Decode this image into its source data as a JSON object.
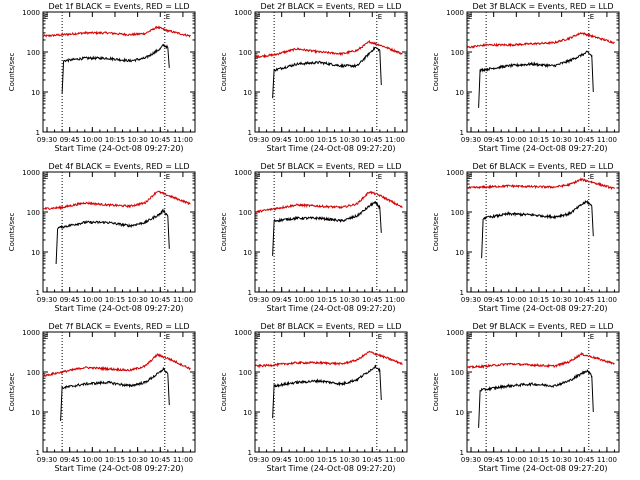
{
  "colors": {
    "events": "#000000",
    "lld": "#d40000",
    "axis": "#000000",
    "background": "#ffffff"
  },
  "shared": {
    "xlabel": "Start Time (24-Oct-08 09:27:20)",
    "ylabel": "Counts/sec",
    "x_ticks": [
      "09:30",
      "09:45",
      "10:00",
      "10:15",
      "10:30",
      "10:45",
      "11:00"
    ],
    "x_range": [
      "09:27:20",
      "11:08:00"
    ],
    "y_ticks": [
      "1",
      "10",
      "100",
      "1000"
    ],
    "y_range": [
      1,
      1000
    ],
    "y_scale": "log",
    "marker_label": "E",
    "dotted_lines_at": [
      "09:40",
      "10:48"
    ]
  },
  "chart_data": [
    {
      "type": "line",
      "title": "Det 1f BLACK = Events, RED = LLD",
      "series": [
        {
          "color": "red",
          "x": [
            "09:27:20",
            "09:40",
            "09:55",
            "10:10",
            "10:25",
            "10:35",
            "10:43",
            "10:50",
            "11:05"
          ],
          "values": [
            250,
            270,
            300,
            300,
            270,
            290,
            420,
            340,
            250
          ]
        },
        {
          "color": "black",
          "x": [
            "09:40",
            "09:41",
            "09:55",
            "10:10",
            "10:25",
            "10:35",
            "10:45",
            "10:47",
            "10:50",
            "10:51"
          ],
          "values": [
            9,
            60,
            70,
            70,
            60,
            70,
            120,
            150,
            130,
            40
          ]
        }
      ]
    },
    {
      "type": "line",
      "title": "Det 2f BLACK = Events, RED = LLD",
      "series": [
        {
          "color": "red",
          "x": [
            "09:27:20",
            "09:40",
            "09:55",
            "10:10",
            "10:25",
            "10:35",
            "10:43",
            "10:50",
            "11:05"
          ],
          "values": [
            75,
            85,
            120,
            100,
            90,
            110,
            180,
            150,
            90
          ]
        },
        {
          "color": "black",
          "x": [
            "09:39",
            "09:40",
            "09:55",
            "10:10",
            "10:25",
            "10:35",
            "10:45",
            "10:47",
            "10:50",
            "10:51"
          ],
          "values": [
            7,
            35,
            50,
            55,
            45,
            45,
            110,
            130,
            110,
            15
          ]
        }
      ]
    },
    {
      "type": "line",
      "title": "Det 3f BLACK = Events, RED = LLD",
      "series": [
        {
          "color": "red",
          "x": [
            "09:27:20",
            "09:40",
            "09:55",
            "10:10",
            "10:25",
            "10:35",
            "10:43",
            "10:50",
            "11:05"
          ],
          "values": [
            130,
            150,
            150,
            160,
            170,
            220,
            300,
            250,
            170
          ]
        },
        {
          "color": "black",
          "x": [
            "09:35",
            "09:36",
            "09:55",
            "10:10",
            "10:25",
            "10:35",
            "10:45",
            "10:47",
            "10:50",
            "10:51"
          ],
          "values": [
            4,
            35,
            45,
            50,
            45,
            60,
            90,
            100,
            80,
            10
          ]
        }
      ]
    },
    {
      "type": "line",
      "title": "Det 4f BLACK = Events, RED = LLD",
      "series": [
        {
          "color": "red",
          "x": [
            "09:27:20",
            "09:40",
            "09:55",
            "10:10",
            "10:25",
            "10:35",
            "10:43",
            "10:50",
            "11:05"
          ],
          "values": [
            120,
            130,
            170,
            150,
            140,
            170,
            330,
            260,
            160
          ]
        },
        {
          "color": "black",
          "x": [
            "09:36",
            "09:37",
            "09:55",
            "10:10",
            "10:25",
            "10:35",
            "10:45",
            "10:47",
            "10:50",
            "10:51"
          ],
          "values": [
            5,
            40,
            55,
            55,
            45,
            55,
            90,
            110,
            80,
            12
          ]
        }
      ]
    },
    {
      "type": "line",
      "title": "Det 5f BLACK = Events, RED = LLD",
      "series": [
        {
          "color": "red",
          "x": [
            "09:27:20",
            "09:40",
            "09:55",
            "10:10",
            "10:25",
            "10:35",
            "10:43",
            "10:50",
            "11:05"
          ],
          "values": [
            100,
            120,
            150,
            140,
            130,
            160,
            320,
            260,
            130
          ]
        },
        {
          "color": "black",
          "x": [
            "09:39",
            "09:40",
            "09:55",
            "10:10",
            "10:25",
            "10:35",
            "10:45",
            "10:47",
            "10:50",
            "10:51"
          ],
          "values": [
            8,
            60,
            70,
            70,
            60,
            80,
            160,
            170,
            130,
            30
          ]
        }
      ]
    },
    {
      "type": "line",
      "title": "Det 6f BLACK = Events, RED = LLD",
      "series": [
        {
          "color": "red",
          "x": [
            "09:27:20",
            "09:40",
            "09:55",
            "10:10",
            "10:25",
            "10:35",
            "10:43",
            "10:50",
            "11:05"
          ],
          "values": [
            400,
            420,
            450,
            430,
            420,
            480,
            650,
            560,
            380
          ]
        },
        {
          "color": "black",
          "x": [
            "09:37",
            "09:38",
            "09:55",
            "10:10",
            "10:25",
            "10:35",
            "10:45",
            "10:47",
            "10:50",
            "10:51"
          ],
          "values": [
            7,
            70,
            90,
            85,
            75,
            90,
            170,
            180,
            140,
            25
          ]
        }
      ]
    },
    {
      "type": "line",
      "title": "Det 7f BLACK = Events, RED = LLD",
      "series": [
        {
          "color": "red",
          "x": [
            "09:27:20",
            "09:40",
            "09:55",
            "10:10",
            "10:25",
            "10:35",
            "10:43",
            "10:50",
            "11:05"
          ],
          "values": [
            80,
            100,
            130,
            120,
            110,
            140,
            270,
            220,
            120
          ]
        },
        {
          "color": "black",
          "x": [
            "09:39",
            "09:40",
            "09:55",
            "10:10",
            "10:25",
            "10:35",
            "10:45",
            "10:47",
            "10:50",
            "10:51"
          ],
          "values": [
            6,
            40,
            50,
            55,
            45,
            55,
            100,
            120,
            90,
            15
          ]
        }
      ]
    },
    {
      "type": "line",
      "title": "Det 8f BLACK = Events, RED = LLD",
      "series": [
        {
          "color": "red",
          "x": [
            "09:27:20",
            "09:40",
            "09:55",
            "10:10",
            "10:25",
            "10:35",
            "10:43",
            "10:50",
            "11:05"
          ],
          "values": [
            140,
            150,
            170,
            170,
            160,
            200,
            320,
            260,
            160
          ]
        },
        {
          "color": "black",
          "x": [
            "09:39",
            "09:40",
            "09:55",
            "10:10",
            "10:25",
            "10:35",
            "10:45",
            "10:47",
            "10:50",
            "10:51"
          ],
          "values": [
            7,
            45,
            55,
            60,
            50,
            65,
            120,
            140,
            110,
            20
          ]
        }
      ]
    },
    {
      "type": "line",
      "title": "Det 9f BLACK = Events, RED = LLD",
      "series": [
        {
          "color": "red",
          "x": [
            "09:27:20",
            "09:40",
            "09:55",
            "10:10",
            "10:25",
            "10:35",
            "10:43",
            "10:50",
            "11:05"
          ],
          "values": [
            130,
            140,
            160,
            150,
            140,
            180,
            280,
            240,
            160
          ]
        },
        {
          "color": "black",
          "x": [
            "09:35",
            "09:36",
            "09:55",
            "10:10",
            "10:25",
            "10:35",
            "10:45",
            "10:47",
            "10:50",
            "10:51"
          ],
          "values": [
            4,
            35,
            45,
            50,
            45,
            60,
            100,
            110,
            80,
            10
          ]
        }
      ]
    }
  ]
}
